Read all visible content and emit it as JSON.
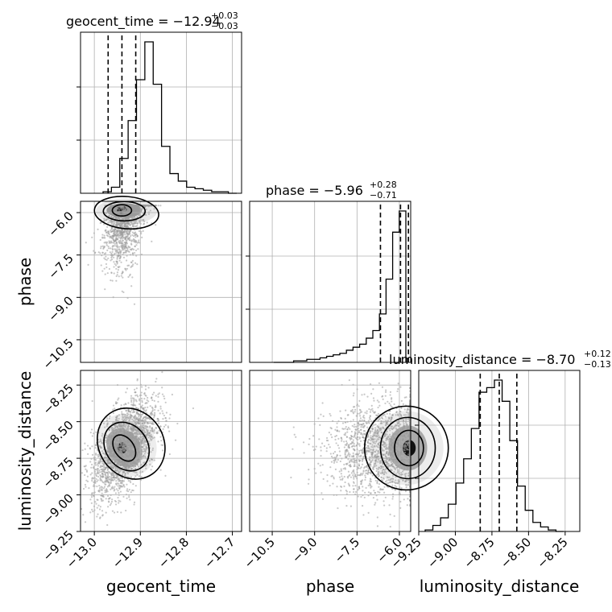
{
  "chart_data": {
    "type": "corner",
    "parameters": [
      "geocent_time",
      "phase",
      "luminosity_distance"
    ],
    "titles": [
      {
        "param": "geocent_time",
        "text": "geocent_time = −12.94",
        "sup": "+0.03",
        "sub": "−0.03"
      },
      {
        "param": "phase",
        "text": "phase = −5.96",
        "sup": "+0.28",
        "sub": "−0.71"
      },
      {
        "param": "luminosity_distance",
        "text": "luminosity_distance = −8.70",
        "sup": "+0.12",
        "sub": "−0.13"
      }
    ],
    "xlabels": [
      "geocent_time",
      "phase",
      "luminosity_distance"
    ],
    "ylabels": [
      "phase",
      "luminosity_distance"
    ],
    "ranges": {
      "geocent_time": [
        -13.03,
        -12.68
      ],
      "phase": [
        -11.3,
        -5.6
      ],
      "luminosity_distance": [
        -9.25,
        -8.15
      ]
    },
    "ticks": {
      "geocent_time": [
        "−13.0",
        "−12.9",
        "−12.8",
        "−12.7"
      ],
      "phase": [
        "−10.5",
        "−9.0",
        "−7.5",
        "−6.0"
      ],
      "luminosity_distance": [
        "−9.25",
        "−9.00",
        "−8.75",
        "−8.50",
        "−8.25"
      ]
    },
    "hist_1d": {
      "geocent_time": {
        "heights": [
          0.01,
          0.04,
          0.23,
          0.48,
          0.75,
          1.0,
          0.72,
          0.31,
          0.13,
          0.08,
          0.04,
          0.03,
          0.02,
          0.01,
          0.01,
          0.0
        ],
        "quantiles": [
          -12.97,
          -12.94,
          -12.91
        ]
      },
      "phase": {
        "heights": [
          0.0,
          0.0,
          0.0,
          0.01,
          0.01,
          0.02,
          0.02,
          0.03,
          0.04,
          0.05,
          0.06,
          0.08,
          0.1,
          0.12,
          0.16,
          0.21,
          0.32,
          0.55,
          0.86,
          1.0
        ],
        "quantiles": [
          -6.67,
          -5.96,
          -5.68
        ]
      },
      "luminosity_distance": {
        "heights": [
          0.01,
          0.04,
          0.09,
          0.18,
          0.32,
          0.48,
          0.68,
          0.92,
          0.95,
          1.0,
          0.86,
          0.6,
          0.3,
          0.14,
          0.06,
          0.03,
          0.01,
          0.0
        ],
        "quantiles": [
          -8.83,
          -8.7,
          -8.58
        ]
      }
    },
    "scatter_style": {
      "point_color": "#9a9a9a",
      "contour_color": "#000000"
    },
    "grid": true
  }
}
